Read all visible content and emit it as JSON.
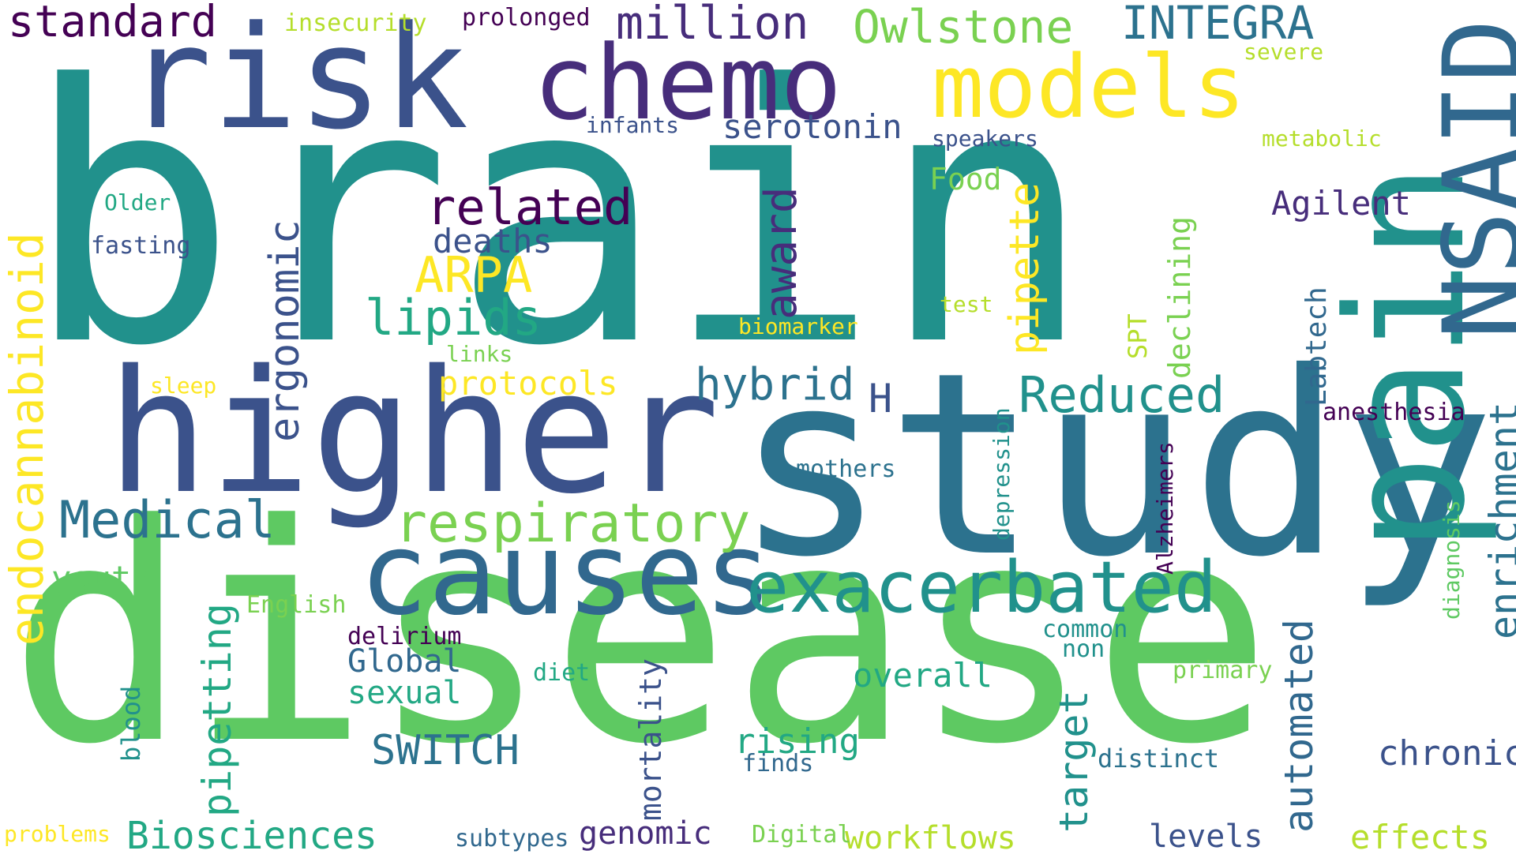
{
  "words": [
    {
      "text": "brain",
      "color": "#21918c"
    },
    {
      "text": "disease",
      "color": "#5ec962"
    },
    {
      "text": "study",
      "color": "#2c728e"
    },
    {
      "text": "higher",
      "color": "#3b528b"
    },
    {
      "text": "risk",
      "color": "#3b528b"
    },
    {
      "text": "pain",
      "color": "#21918c"
    },
    {
      "text": "chemo",
      "color": "#472d7b"
    },
    {
      "text": "models",
      "color": "#fde725"
    },
    {
      "text": "NSAID",
      "color": "#31688e"
    },
    {
      "text": "causes",
      "color": "#31688e"
    },
    {
      "text": "exacerbated",
      "color": "#21918c"
    },
    {
      "text": "standard",
      "color": "#440154"
    },
    {
      "text": "million",
      "color": "#472d7b"
    },
    {
      "text": "Owlstone",
      "color": "#7ad151"
    },
    {
      "text": "INTEGRA",
      "color": "#2c728e"
    },
    {
      "text": "respiratory",
      "color": "#7ad151"
    },
    {
      "text": "Medical",
      "color": "#2c728e"
    },
    {
      "text": "endocannabinoid",
      "color": "#fde725"
    },
    {
      "text": "ergonomic",
      "color": "#3b528b"
    },
    {
      "text": "related",
      "color": "#440154"
    },
    {
      "text": "ARPA",
      "color": "#fde725"
    },
    {
      "text": "lipids",
      "color": "#22a884"
    },
    {
      "text": "award",
      "color": "#472d7b"
    },
    {
      "text": "pipette",
      "color": "#fde725"
    },
    {
      "text": "hybrid",
      "color": "#2c728e"
    },
    {
      "text": "Reduced",
      "color": "#21918c"
    },
    {
      "text": "enrichment",
      "color": "#2c728e"
    },
    {
      "text": "automated",
      "color": "#31688e"
    },
    {
      "text": "pipetting",
      "color": "#22a884"
    },
    {
      "text": "Biosciences",
      "color": "#22a884"
    },
    {
      "text": "target",
      "color": "#21918c"
    },
    {
      "text": "SWITCH",
      "color": "#2c728e"
    },
    {
      "text": "mortality",
      "color": "#3b528b"
    },
    {
      "text": "declining",
      "color": "#7ad151"
    },
    {
      "text": "Labtech",
      "color": "#31688e"
    },
    {
      "text": "deaths",
      "color": "#3b528b"
    },
    {
      "text": "serotonin",
      "color": "#3b528b"
    },
    {
      "text": "protocols",
      "color": "#fde725"
    },
    {
      "text": "Agilent",
      "color": "#472d7b"
    },
    {
      "text": "chronic",
      "color": "#3b528b"
    },
    {
      "text": "effects",
      "color": "#b5de2b"
    },
    {
      "text": "workflows",
      "color": "#b5de2b"
    },
    {
      "text": "levels",
      "color": "#3b528b"
    },
    {
      "text": "genomic",
      "color": "#472d7b"
    },
    {
      "text": "overall",
      "color": "#22a884"
    },
    {
      "text": "rising",
      "color": "#22a884"
    },
    {
      "text": "youth",
      "color": "#5ec962"
    },
    {
      "text": "sexual",
      "color": "#22a884"
    },
    {
      "text": "Global",
      "color": "#31688e"
    },
    {
      "text": "Food",
      "color": "#7ad151"
    },
    {
      "text": "H",
      "color": "#3b528b"
    },
    {
      "text": "SPT",
      "color": "#b5de2b"
    },
    {
      "text": "insecurity",
      "color": "#b5de2b"
    },
    {
      "text": "prolonged",
      "color": "#440154"
    },
    {
      "text": "severe",
      "color": "#b5de2b"
    },
    {
      "text": "infants",
      "color": "#3b528b"
    },
    {
      "text": "speakers",
      "color": "#3b528b"
    },
    {
      "text": "metabolic",
      "color": "#b5de2b"
    },
    {
      "text": "Older",
      "color": "#22a884"
    },
    {
      "text": "fasting",
      "color": "#3b528b"
    },
    {
      "text": "test",
      "color": "#b5de2b"
    },
    {
      "text": "biomarker",
      "color": "#fde725"
    },
    {
      "text": "links",
      "color": "#7ad151"
    },
    {
      "text": "sleep",
      "color": "#fde725"
    },
    {
      "text": "anesthesia",
      "color": "#440154"
    },
    {
      "text": "mothers",
      "color": "#2c728e"
    },
    {
      "text": "depression",
      "color": "#21918c"
    },
    {
      "text": "Alzheimers",
      "color": "#440154"
    },
    {
      "text": "diagnosis",
      "color": "#5ec962"
    },
    {
      "text": "English",
      "color": "#7ad151"
    },
    {
      "text": "delirium",
      "color": "#440154"
    },
    {
      "text": "common",
      "color": "#21918c"
    },
    {
      "text": "non",
      "color": "#21918c"
    },
    {
      "text": "diet",
      "color": "#22a884"
    },
    {
      "text": "primary",
      "color": "#7ad151"
    },
    {
      "text": "blood",
      "color": "#21918c"
    },
    {
      "text": "distinct",
      "color": "#2c728e"
    },
    {
      "text": "finds",
      "color": "#31688e"
    },
    {
      "text": "problems",
      "color": "#fde725"
    },
    {
      "text": "subtypes",
      "color": "#31688e"
    },
    {
      "text": "Digital",
      "color": "#7ad151"
    }
  ]
}
